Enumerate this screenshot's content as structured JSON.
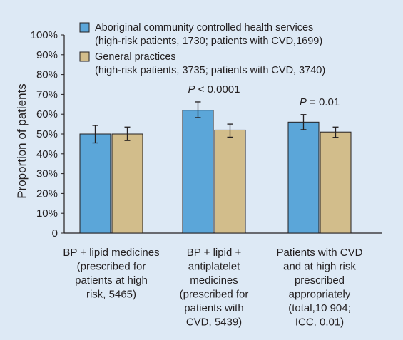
{
  "colors": {
    "background": "#dde9f5",
    "series_aboriginal": "#5ba6d9",
    "series_gp": "#d2bd8b",
    "axis": "#231f20"
  },
  "chart_data": {
    "type": "bar",
    "ylabel": "Proportion of patients",
    "xlabel": "",
    "ylim": [
      0,
      100
    ],
    "y_ticks": [
      "0",
      "10%",
      "20%",
      "30%",
      "40%",
      "50%",
      "60%",
      "70%",
      "80%",
      "90%",
      "100%"
    ],
    "grid": false,
    "legend_position": "top",
    "categories": [
      [
        "BP + lipid medicines",
        "(prescribed for",
        "patients at high",
        "risk, 5465)"
      ],
      [
        "BP + lipid +",
        "antiplatelet",
        "medicines",
        "(prescribed for",
        "patients with",
        "CVD, 5439)"
      ],
      [
        "Patients with CVD",
        "and at high risk",
        "prescribed",
        "appropriately",
        "(total,10 904;",
        "ICC, 0.01)"
      ]
    ],
    "series": [
      {
        "name": "Aboriginal community controlled health services",
        "legend_detail": "(high-risk patients, 1730; patients with CVD,1699)",
        "color": "#5ba6d9",
        "values": [
          50,
          62,
          56
        ],
        "error_low": [
          45.5,
          58.3,
          52.2
        ],
        "error_high": [
          54.3,
          66.2,
          59.8
        ]
      },
      {
        "name": "General practices",
        "legend_detail": "(high-risk patients, 3735; patients with CVD, 3740)",
        "color": "#d2bd8b",
        "values": [
          50,
          52,
          51
        ],
        "error_low": [
          46.7,
          48.4,
          48.3
        ],
        "error_high": [
          53.5,
          55,
          53.5
        ]
      }
    ],
    "annotations": [
      {
        "category_index": 1,
        "p_symbol": "P",
        "text": " < 0.0001"
      },
      {
        "category_index": 2,
        "p_symbol": "P",
        "text": " = 0.01"
      }
    ]
  }
}
